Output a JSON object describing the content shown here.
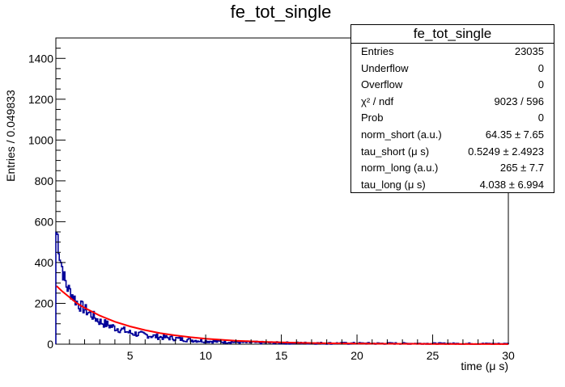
{
  "chart_data": {
    "type": "histogram",
    "title": "fe_tot_single",
    "xlabel": "time (μ s)",
    "ylabel": "Entries / 0.049833",
    "xlim": [
      0.1,
      30
    ],
    "ylim": [
      0,
      1500
    ],
    "xticks": [
      5,
      10,
      15,
      20,
      25,
      30
    ],
    "yticks": [
      0,
      200,
      400,
      600,
      800,
      1000,
      1200,
      1400
    ],
    "bin_width": 0.049833,
    "histogram_color": "#000099",
    "fit_color": "#ff0000",
    "histogram_samples": {
      "x": [
        0.15,
        0.25,
        0.35,
        0.45,
        0.6,
        0.8,
        1.0,
        1.25,
        1.5,
        2.0,
        2.5,
        3.0,
        3.5,
        4.0,
        4.5,
        5.0,
        6.0,
        7.0,
        8.0,
        9.0,
        10.0,
        12.0,
        15.0,
        20.0,
        25.0,
        30.0
      ],
      "y": [
        550,
        480,
        420,
        390,
        330,
        280,
        260,
        230,
        200,
        170,
        140,
        110,
        95,
        80,
        70,
        55,
        45,
        35,
        28,
        20,
        15,
        10,
        6,
        4,
        3,
        2
      ]
    },
    "fit": {
      "x": [
        0.15,
        0.5,
        1,
        1.5,
        2,
        3,
        4,
        5,
        6,
        7,
        8,
        9,
        10,
        12,
        14,
        16,
        18,
        20,
        25,
        30
      ],
      "y": [
        285,
        260,
        230,
        200,
        178,
        140,
        110,
        87,
        69,
        54,
        43,
        34,
        27,
        17,
        11,
        7,
        4.5,
        3,
        1,
        0.3
      ]
    },
    "stats": {
      "title": "fe_tot_single",
      "rows": [
        {
          "label": "Entries",
          "value": "23035"
        },
        {
          "label": "Underflow",
          "value": "0"
        },
        {
          "label": "Overflow",
          "value": "0"
        },
        {
          "label": "χ² / ndf",
          "value": "9023 / 596"
        },
        {
          "label": "Prob",
          "value": "0"
        },
        {
          "label": "norm_short (a.u.)",
          "value": "64.35 ± 7.65"
        },
        {
          "label": "tau_short (μ s)",
          "value": "0.5249 ± 2.4923"
        },
        {
          "label": "norm_long (a.u.)",
          "value": "265 ± 7.7"
        },
        {
          "label": "tau_long (μ s)",
          "value": "4.038 ± 6.994"
        }
      ]
    }
  }
}
